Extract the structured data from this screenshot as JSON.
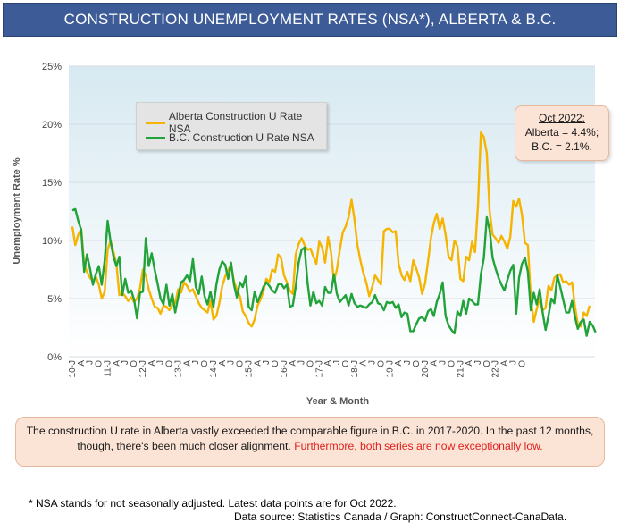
{
  "header": {
    "title": "CONSTRUCTION UNEMPLOYMENT RATES (NSA*),  ALBERTA & B.C."
  },
  "callout": {
    "heading": "Oct 2022:",
    "line1": "Alberta = 4.4%;",
    "line2": "B.C. = 2.1%."
  },
  "commentary": {
    "text": "The construction U rate in Alberta vastly exceeded the comparable figure in B.C. in 2017-2020. In the past 12 months, though, there's been much closer alignment. ",
    "highlight": "Furthermore, both series are now exceptionally low."
  },
  "footnote": "* NSA stands for not seasonally adjusted. Latest data points are for Oct 2022.",
  "source": "Data source: Statistics Canada / Graph: ConstructConnect-CanaData.",
  "colors": {
    "alberta": "#f5b400",
    "bc": "#22a33a",
    "banner": "#3d5b97",
    "plot_bg_top": "#d7e9f1",
    "plot_bg_bottom": "#ffffff"
  },
  "chart_data": {
    "type": "line",
    "title": "CONSTRUCTION UNEMPLOYMENT RATES (NSA*),  ALBERTA & B.C.",
    "xlabel": "Year & Month",
    "ylabel": "Unemployment Rate %",
    "ylim": [
      0,
      25
    ],
    "yticks": [
      "0%",
      "5%",
      "10%",
      "15%",
      "20%",
      "25%"
    ],
    "x_start": "2010-01",
    "x_end": "2022-10",
    "x_ticks": [
      "10-J",
      "A",
      "J",
      "O",
      "11-J",
      "A",
      "J",
      "O",
      "12-J",
      "A",
      "J",
      "O",
      "13-J",
      "A",
      "J",
      "O",
      "14-J",
      "A",
      "J",
      "O",
      "15-J",
      "A",
      "J",
      "O",
      "16-J",
      "A",
      "J",
      "O",
      "17-J",
      "A",
      "J",
      "O",
      "18-J",
      "A",
      "J",
      "O",
      "19-J",
      "A",
      "J",
      "O",
      "20-J",
      "A",
      "J",
      "O",
      "21-J",
      "A",
      "J",
      "O",
      "22-J",
      "A",
      "J",
      "O"
    ],
    "grid": true,
    "legend_position": "top-left",
    "series": [
      {
        "name": "Alberta Construction U Rate NSA",
        "values": [
          11.2,
          9.6,
          10.5,
          11.0,
          8.0,
          7.3,
          6.8,
          6.5,
          6.9,
          6.2,
          5.0,
          5.6,
          9.2,
          10.0,
          9.0,
          8.0,
          5.3,
          5.5,
          5.2,
          4.8,
          5.1,
          4.7,
          5.0,
          5.9,
          7.5,
          7.0,
          5.8,
          5.0,
          4.3,
          4.2,
          3.7,
          4.4,
          4.3,
          4.0,
          4.5,
          4.6,
          5.8,
          5.5,
          6.4,
          6.1,
          5.6,
          5.8,
          5.2,
          4.6,
          4.2,
          4.0,
          3.8,
          4.8,
          3.2,
          3.5,
          4.6,
          6.1,
          6.9,
          7.5,
          7.8,
          6.5,
          5.8,
          5.2,
          3.9,
          3.5,
          2.9,
          2.6,
          3.2,
          4.4,
          4.9,
          5.6,
          6.7,
          6.4,
          7.5,
          7.3,
          8.8,
          8.5,
          7.0,
          6.4,
          5.7,
          5.4,
          8.8,
          9.7,
          10.2,
          9.6,
          9.2,
          9.3,
          8.6,
          8.0,
          9.9,
          9.4,
          8.1,
          10.3,
          9.0,
          6.5,
          7.5,
          9.2,
          10.7,
          11.2,
          12.0,
          13.5,
          11.8,
          9.6,
          8.3,
          7.2,
          6.4,
          5.2,
          6.0,
          7.0,
          6.6,
          6.2,
          10.8,
          11.0,
          11.0,
          10.7,
          10.8,
          8.0,
          7.0,
          6.6,
          7.3,
          6.5,
          8.3,
          7.6,
          6.8,
          5.4,
          6.3,
          8.2,
          10.2,
          11.5,
          12.3,
          11.0,
          11.9,
          10.5,
          8.6,
          8.3,
          10.0,
          9.5,
          6.7,
          6.5,
          8.6,
          8.3,
          9.9,
          9.0,
          13.0,
          19.3,
          18.9,
          17.5,
          12.5,
          10.5,
          10.2,
          9.8,
          10.4,
          9.9,
          9.3,
          10.3,
          13.4,
          12.9,
          13.6,
          12.2,
          9.8,
          9.6,
          5.0,
          3.0,
          4.1,
          5.0,
          4.0,
          4.2,
          6.1,
          5.7,
          6.8,
          7.0,
          7.1,
          6.4,
          6.5,
          6.2,
          6.4,
          4.3,
          2.8,
          2.6,
          3.8,
          3.5,
          4.4
        ]
      },
      {
        "name": "B.C. Construction U Rate NSA",
        "values": [
          12.6,
          12.7,
          11.7,
          10.9,
          7.3,
          8.8,
          7.6,
          6.2,
          7.1,
          7.8,
          6.2,
          8.3,
          11.7,
          9.9,
          8.6,
          7.8,
          8.6,
          5.3,
          6.7,
          5.5,
          5.7,
          4.9,
          3.3,
          5.5,
          5.6,
          10.2,
          7.8,
          8.9,
          7.5,
          6.3,
          5.0,
          4.5,
          6.2,
          4.4,
          5.4,
          3.8,
          5.1,
          6.4,
          6.6,
          7.0,
          6.5,
          8.4,
          6.0,
          5.4,
          6.9,
          5.2,
          4.5,
          5.6,
          4.3,
          6.2,
          7.5,
          8.2,
          7.9,
          6.7,
          8.1,
          6.2,
          5.1,
          6.4,
          6.0,
          6.9,
          4.3,
          4.0,
          5.6,
          4.7,
          5.3,
          6.0,
          6.4,
          6.1,
          5.7,
          5.5,
          6.2,
          6.3,
          5.9,
          6.2,
          4.3,
          4.4,
          6.0,
          8.1,
          9.2,
          9.4,
          6.4,
          4.4,
          5.6,
          4.6,
          4.8,
          4.4,
          6.0,
          5.5,
          5.5,
          7.1,
          5.4,
          4.7,
          5.0,
          5.3,
          4.4,
          5.4,
          4.6,
          4.3,
          4.4,
          4.3,
          4.2,
          4.5,
          4.7,
          5.3,
          4.6,
          4.5,
          4.0,
          4.7,
          4.6,
          4.7,
          4.2,
          4.5,
          3.4,
          3.8,
          3.7,
          2.2,
          2.2,
          2.8,
          3.3,
          3.4,
          3.1,
          3.9,
          4.1,
          3.5,
          4.7,
          5.4,
          6.4,
          3.5,
          2.7,
          2.3,
          2.0,
          3.9,
          3.5,
          4.8,
          3.7,
          5.0,
          4.8,
          4.5,
          4.5,
          7.1,
          8.5,
          12.0,
          10.9,
          8.5,
          7.6,
          6.8,
          6.2,
          5.7,
          6.6,
          7.4,
          7.9,
          3.7,
          6.8,
          8.0,
          8.5,
          7.3,
          4.0,
          5.5,
          4.5,
          5.8,
          3.8,
          2.3,
          3.5,
          5.0,
          4.6,
          7.0,
          6.0,
          4.9,
          3.8,
          3.8,
          4.8,
          3.4,
          2.4,
          3.0,
          3.2,
          1.8,
          3.0,
          2.7,
          2.1
        ]
      }
    ]
  }
}
